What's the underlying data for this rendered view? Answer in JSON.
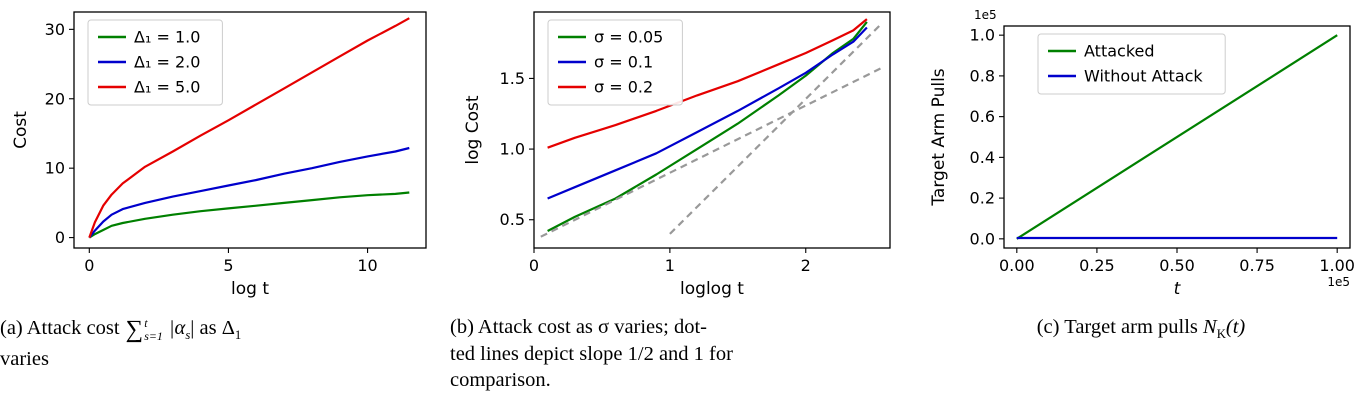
{
  "captions": {
    "a": {
      "prefix": "(a) Attack cost",
      "sum_sym": "∑",
      "sum_sup": "t",
      "sum_sub": "s=1",
      "alpha_pre": "|α",
      "alpha_sub": "s",
      "alpha_post": "| as Δ",
      "delta_sub": "1",
      "line2": "varies"
    },
    "b": {
      "line1": "(b) Attack cost as σ varies; dot-",
      "line2": "ted lines depict slope 1/2 and 1 for",
      "line3": "comparison."
    },
    "c": {
      "prefix": "(c) Target arm pulls",
      "n": "N",
      "n_sub": "K",
      "rest": "(t)"
    }
  },
  "chart_data": [
    {
      "type": "line",
      "title": "",
      "xlabel": "log t",
      "ylabel": "Cost",
      "xlim": [
        -0.55,
        12.1
      ],
      "ylim": [
        -1.5,
        32.5
      ],
      "grid": false,
      "legend_position": "upper-left",
      "xticks": [
        {
          "v": 0,
          "label": "0"
        },
        {
          "v": 5,
          "label": "5"
        },
        {
          "v": 10,
          "label": "10"
        }
      ],
      "yticks": [
        {
          "v": 0,
          "label": "0"
        },
        {
          "v": 10,
          "label": "10"
        },
        {
          "v": 20,
          "label": "20"
        },
        {
          "v": 30,
          "label": "30"
        }
      ],
      "series": [
        {
          "name": "Δ₁ = 1.0",
          "color": "#008000",
          "points": [
            [
              0,
              0
            ],
            [
              0.2,
              0.5
            ],
            [
              0.5,
              1.1
            ],
            [
              0.8,
              1.7
            ],
            [
              1.2,
              2.1
            ],
            [
              2,
              2.7
            ],
            [
              3,
              3.3
            ],
            [
              4,
              3.8
            ],
            [
              5,
              4.2
            ],
            [
              6,
              4.6
            ],
            [
              7,
              5.0
            ],
            [
              8,
              5.4
            ],
            [
              9,
              5.8
            ],
            [
              10,
              6.1
            ],
            [
              11,
              6.3
            ],
            [
              11.5,
              6.5
            ]
          ]
        },
        {
          "name": "Δ₁ = 2.0",
          "color": "#0000cc",
          "points": [
            [
              0,
              0
            ],
            [
              0.2,
              1.0
            ],
            [
              0.5,
              2.3
            ],
            [
              0.8,
              3.3
            ],
            [
              1.2,
              4.1
            ],
            [
              2,
              5.0
            ],
            [
              3,
              5.9
            ],
            [
              4,
              6.7
            ],
            [
              5,
              7.5
            ],
            [
              6,
              8.3
            ],
            [
              7,
              9.2
            ],
            [
              8,
              10.0
            ],
            [
              9,
              10.9
            ],
            [
              10,
              11.7
            ],
            [
              11,
              12.4
            ],
            [
              11.5,
              12.9
            ]
          ]
        },
        {
          "name": "Δ₁ = 5.0",
          "color": "#e50000",
          "points": [
            [
              0,
              0
            ],
            [
              0.2,
              2.2
            ],
            [
              0.5,
              4.6
            ],
            [
              0.8,
              6.2
            ],
            [
              1.2,
              7.8
            ],
            [
              2,
              10.2
            ],
            [
              3,
              12.4
            ],
            [
              4,
              14.7
            ],
            [
              5,
              16.9
            ],
            [
              6,
              19.2
            ],
            [
              7,
              21.5
            ],
            [
              8,
              23.8
            ],
            [
              9,
              26.1
            ],
            [
              10,
              28.4
            ],
            [
              11,
              30.5
            ],
            [
              11.5,
              31.6
            ]
          ]
        }
      ]
    },
    {
      "type": "line",
      "title": "",
      "xlabel": "loglog t",
      "ylabel": "log Cost",
      "xlim": [
        0,
        2.62
      ],
      "ylim": [
        0.3,
        1.97
      ],
      "grid": false,
      "legend_position": "upper-left",
      "xticks": [
        {
          "v": 0,
          "label": "0"
        },
        {
          "v": 1,
          "label": "1"
        },
        {
          "v": 2,
          "label": "2"
        }
      ],
      "yticks": [
        {
          "v": 0.5,
          "label": "0.5"
        },
        {
          "v": 1.0,
          "label": "1.0"
        },
        {
          "v": 1.5,
          "label": "1.5"
        }
      ],
      "series": [
        {
          "name": "σ = 0.05",
          "color": "#008000",
          "points": [
            [
              0.1,
              0.42
            ],
            [
              0.3,
              0.52
            ],
            [
              0.6,
              0.65
            ],
            [
              0.9,
              0.82
            ],
            [
              1.2,
              1.0
            ],
            [
              1.5,
              1.18
            ],
            [
              1.8,
              1.38
            ],
            [
              2.0,
              1.52
            ],
            [
              2.2,
              1.68
            ],
            [
              2.35,
              1.78
            ],
            [
              2.45,
              1.9
            ]
          ]
        },
        {
          "name": "σ = 0.1",
          "color": "#0000cc",
          "points": [
            [
              0.1,
              0.65
            ],
            [
              0.3,
              0.73
            ],
            [
              0.6,
              0.85
            ],
            [
              0.9,
              0.97
            ],
            [
              1.2,
              1.12
            ],
            [
              1.5,
              1.27
            ],
            [
              1.8,
              1.43
            ],
            [
              2.0,
              1.54
            ],
            [
              2.2,
              1.67
            ],
            [
              2.35,
              1.76
            ],
            [
              2.45,
              1.86
            ]
          ]
        },
        {
          "name": "σ = 0.2",
          "color": "#e50000",
          "points": [
            [
              0.1,
              1.01
            ],
            [
              0.3,
              1.08
            ],
            [
              0.6,
              1.17
            ],
            [
              0.9,
              1.27
            ],
            [
              1.2,
              1.38
            ],
            [
              1.5,
              1.48
            ],
            [
              1.8,
              1.6
            ],
            [
              2.0,
              1.68
            ],
            [
              2.2,
              1.77
            ],
            [
              2.35,
              1.84
            ],
            [
              2.45,
              1.92
            ]
          ]
        },
        {
          "name": null,
          "note": "slope 1/2 reference",
          "color": "#999999",
          "dash": true,
          "points": [
            [
              0.05,
              0.38
            ],
            [
              2.55,
              1.57
            ]
          ]
        },
        {
          "name": null,
          "note": "slope 1 reference",
          "color": "#999999",
          "dash": true,
          "points": [
            [
              1.0,
              0.4
            ],
            [
              2.55,
              1.88
            ]
          ]
        }
      ]
    },
    {
      "type": "line",
      "title": "",
      "xlabel": "t",
      "ylabel": "Target Arm Pulls",
      "xlim": [
        -0.04,
        1.04
      ],
      "ylim": [
        -0.045,
        1.045
      ],
      "grid": false,
      "legend_position": "upper-left",
      "y_offset_label": "1e5",
      "x_offset_label": "1e5",
      "xticks": [
        {
          "v": 0,
          "label": "0.00"
        },
        {
          "v": 0.25,
          "label": "0.25"
        },
        {
          "v": 0.5,
          "label": "0.50"
        },
        {
          "v": 0.75,
          "label": "0.75"
        },
        {
          "v": 1.0,
          "label": "1.00"
        }
      ],
      "yticks": [
        {
          "v": 0,
          "label": "0.0"
        },
        {
          "v": 0.2,
          "label": "0.2"
        },
        {
          "v": 0.4,
          "label": "0.4"
        },
        {
          "v": 0.6,
          "label": "0.6"
        },
        {
          "v": 0.8,
          "label": "0.8"
        },
        {
          "v": 1.0,
          "label": "1.0"
        }
      ],
      "series": [
        {
          "name": "Attacked",
          "color": "#008000",
          "points": [
            [
              0,
              0
            ],
            [
              1.0,
              1.0
            ]
          ]
        },
        {
          "name": "Without Attack",
          "color": "#0000cc",
          "points": [
            [
              0,
              0.004
            ],
            [
              1.0,
              0.004
            ]
          ]
        }
      ]
    }
  ]
}
